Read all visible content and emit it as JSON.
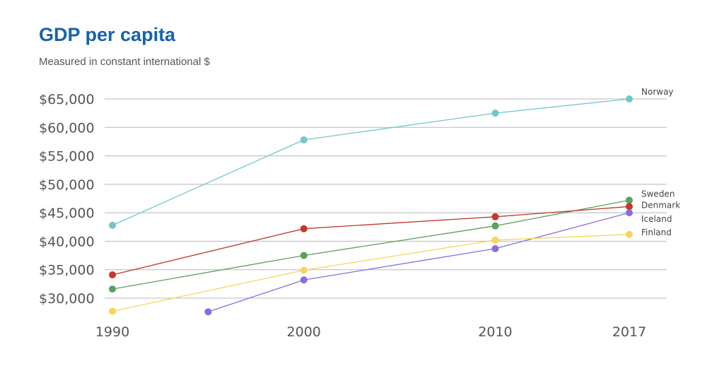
{
  "chart_data": {
    "type": "line",
    "title": "GDP per capita",
    "subtitle": "Measured in constant international $",
    "xlabel": "",
    "ylabel": "",
    "x_ticks": [
      "1990",
      "2000",
      "2010",
      "2017"
    ],
    "y_ticks": [
      "$30,000",
      "$35,000",
      "$40,000",
      "$45,000",
      "$50,000",
      "$55,000",
      "$60,000",
      "$65,000"
    ],
    "xlim": [
      1990,
      2017
    ],
    "ylim": [
      27500,
      65000
    ],
    "grid": "horizontal",
    "legend": "direct labels at right end of lines",
    "series": [
      {
        "name": "Norway",
        "color": "#72c7cc",
        "x": [
          1990,
          2000,
          2010,
          2017
        ],
        "values": [
          42800,
          57800,
          62500,
          65000
        ]
      },
      {
        "name": "Sweden",
        "color": "#5e9e5e",
        "x": [
          1990,
          2000,
          2010,
          2017
        ],
        "values": [
          31600,
          37500,
          42700,
          47200
        ]
      },
      {
        "name": "Denmark",
        "color": "#c0392b",
        "x": [
          1990,
          2000,
          2010,
          2017
        ],
        "values": [
          34100,
          42200,
          44300,
          46100
        ]
      },
      {
        "name": "Iceland",
        "color": "#8a6ddf",
        "x": [
          1995,
          2000,
          2010,
          2017
        ],
        "values": [
          27600,
          33200,
          38700,
          45000
        ]
      },
      {
        "name": "Finland",
        "color": "#f8d55a",
        "x": [
          1990,
          2000,
          2010,
          2017
        ],
        "values": [
          27700,
          34900,
          40200,
          41200
        ]
      }
    ]
  }
}
